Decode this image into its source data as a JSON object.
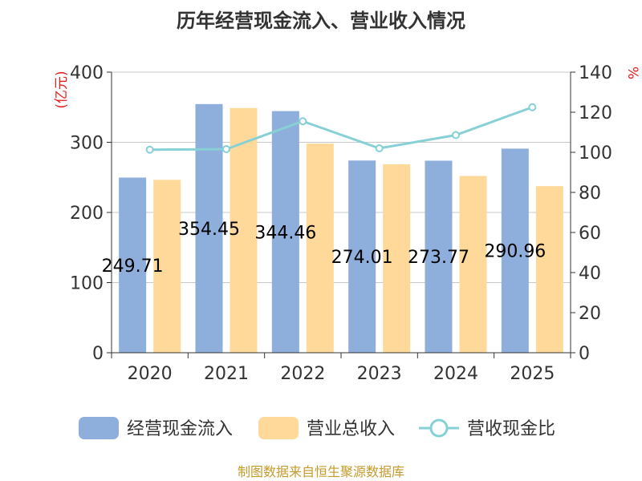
{
  "chart_data": {
    "type": "bar",
    "title": "历年经营现金流入、营业收入情况",
    "categories": [
      "2020",
      "2021",
      "2022",
      "2023",
      "2024",
      "2025"
    ],
    "series": [
      {
        "name": "经营现金流入",
        "axis": "left",
        "kind": "bar",
        "color": "#8eaedb",
        "values": [
          249.71,
          354.45,
          344.46,
          274.01,
          273.77,
          290.96
        ],
        "labels": [
          "249.71",
          "354.45",
          "344.46",
          "274.01",
          "273.77",
          "290.96"
        ]
      },
      {
        "name": "营业总收入",
        "axis": "left",
        "kind": "bar",
        "color": "#ffd99a",
        "values": [
          246.5,
          348.8,
          298.2,
          268.7,
          252.0,
          237.5
        ]
      },
      {
        "name": "营收现金比",
        "axis": "right",
        "kind": "line",
        "color": "#86d0d6",
        "values": [
          101.3,
          101.6,
          115.5,
          102.0,
          108.6,
          122.5
        ]
      }
    ],
    "y_left": {
      "unit": "(亿元)",
      "min": 0,
      "max": 400,
      "ticks": [
        "0",
        "100",
        "200",
        "300",
        "400"
      ]
    },
    "y_right": {
      "unit": "%",
      "min": 0,
      "max": 140,
      "ticks": [
        "0",
        "20",
        "40",
        "60",
        "80",
        "100",
        "120",
        "140"
      ]
    },
    "grid": true,
    "legend_position": "bottom",
    "source": "制图数据来自恒生聚源数据库"
  }
}
